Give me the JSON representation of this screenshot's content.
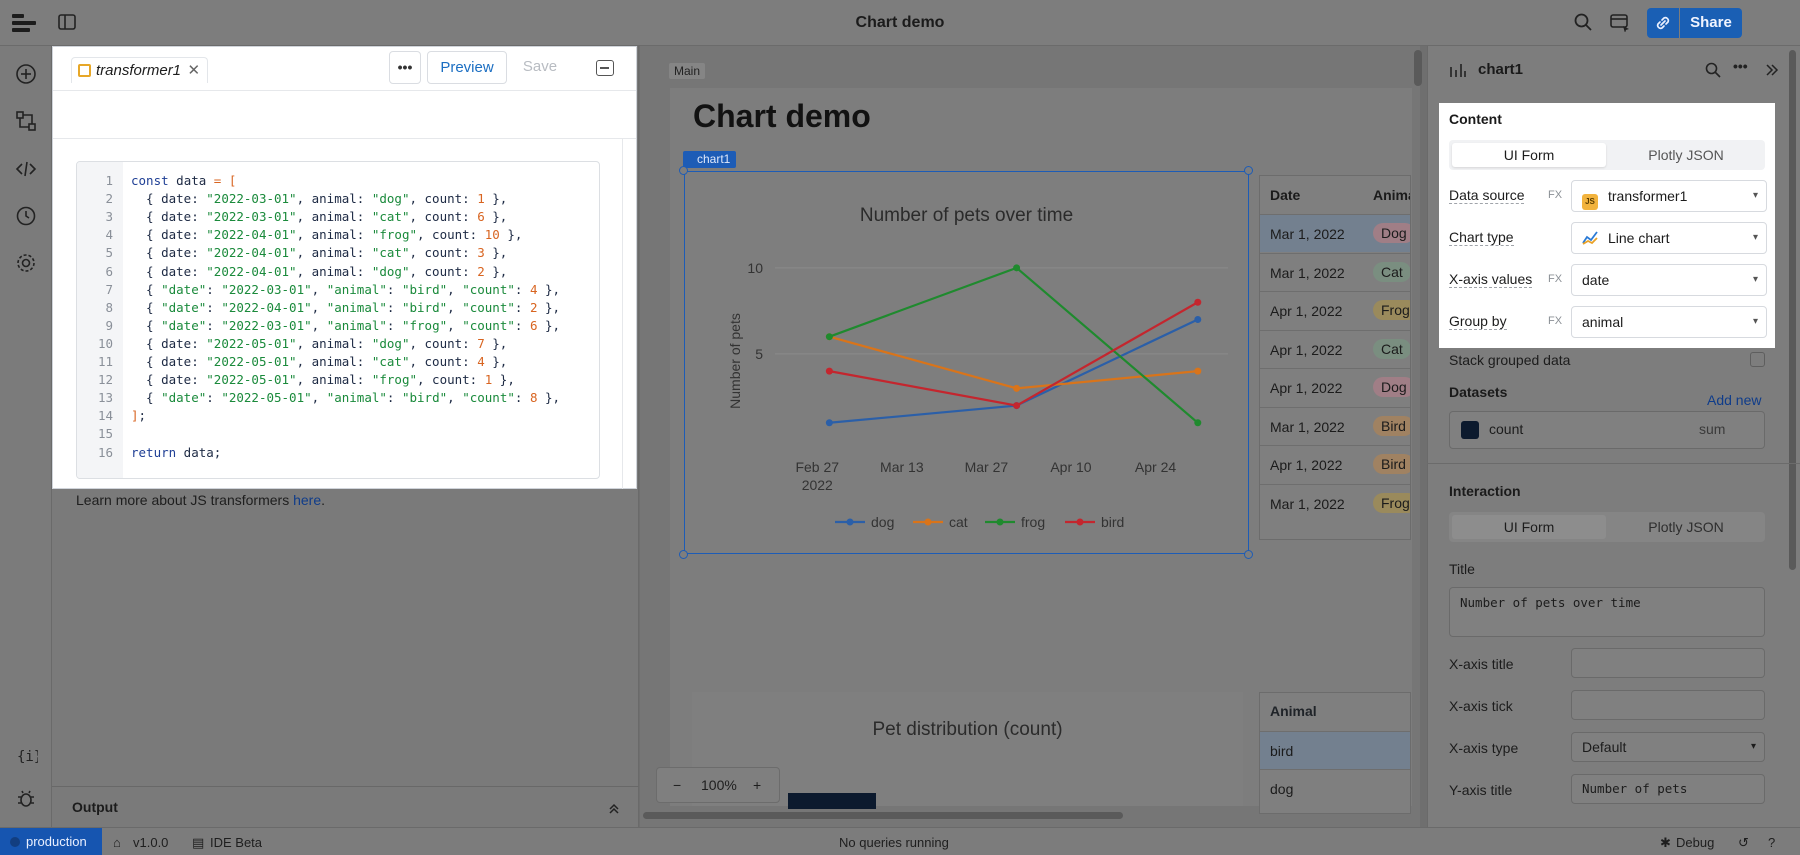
{
  "app": {
    "title": "Chart demo",
    "share_label": "Share"
  },
  "status_bar": {
    "environment": "production",
    "version": "v1.0.0",
    "ide": "IDE Beta",
    "queries": "No queries running",
    "debug": "Debug"
  },
  "transformer": {
    "tab_label": "transformer1",
    "preview_label": "Preview",
    "save_label": "Save",
    "more_label": "•••",
    "learn_prefix": "Learn more about JS transformers ",
    "learn_link": "here",
    "learn_suffix": ".",
    "output_label": "Output",
    "code_lines": [
      "const data = [",
      "  { date: \"2022-03-01\", animal: \"dog\", count: 1 },",
      "  { date: \"2022-03-01\", animal: \"cat\", count: 6 },",
      "  { date: \"2022-04-01\", animal: \"frog\", count: 10 },",
      "  { date: \"2022-04-01\", animal: \"cat\", count: 3 },",
      "  { date: \"2022-04-01\", animal: \"dog\", count: 2 },",
      "  { \"date\": \"2022-03-01\", \"animal\": \"bird\", \"count\": 4 },",
      "  { \"date\": \"2022-04-01\", \"animal\": \"bird\", \"count\": 2 },",
      "  { \"date\": \"2022-03-01\", \"animal\": \"frog\", \"count\": 6 },",
      "  { date: \"2022-05-01\", animal: \"dog\", count: 7 },",
      "  { date: \"2022-05-01\", animal: \"cat\", count: 4 },",
      "  { date: \"2022-05-01\", animal: \"frog\", count: 1 },",
      "  { \"date\": \"2022-05-01\", \"animal\": \"bird\", \"count\": 8 },",
      "];",
      "",
      "return data;"
    ]
  },
  "canvas": {
    "section_label": "Main",
    "heading": "Chart demo",
    "chart_component_label": "chart1",
    "zoom_level": "100%",
    "zoom_minus": "−",
    "zoom_plus": "+",
    "chart2_title": "Pet distribution (count)",
    "table1": {
      "headers": [
        "Date",
        "Animal"
      ],
      "rows": [
        {
          "date": "Mar 1, 2022",
          "animal": "Dog"
        },
        {
          "date": "Mar 1, 2022",
          "animal": "Cat"
        },
        {
          "date": "Apr 1, 2022",
          "animal": "Frog"
        },
        {
          "date": "Apr 1, 2022",
          "animal": "Cat"
        },
        {
          "date": "Apr 1, 2022",
          "animal": "Dog"
        },
        {
          "date": "Mar 1, 2022",
          "animal": "Bird"
        },
        {
          "date": "Apr 1, 2022",
          "animal": "Bird"
        },
        {
          "date": "Mar 1, 2022",
          "animal": "Frog"
        }
      ]
    },
    "table2": {
      "header": "Animal",
      "rows": [
        "bird",
        "dog"
      ]
    }
  },
  "chart_data": {
    "type": "line",
    "title": "Number of pets over time",
    "xlabel": "",
    "ylabel": "Number of pets",
    "x": [
      "2022-03-01",
      "2022-04-01",
      "2022-05-01"
    ],
    "x_tick_labels": [
      "Feb 27",
      "Mar 13",
      "Mar 27",
      "Apr 10",
      "Apr 24"
    ],
    "x_tick_year": "2022",
    "y_ticks": [
      5,
      10
    ],
    "series": [
      {
        "name": "dog",
        "values": [
          1,
          2,
          7
        ],
        "color": "#2b5fa8"
      },
      {
        "name": "cat",
        "values": [
          6,
          3,
          4
        ],
        "color": "#d9741a"
      },
      {
        "name": "frog",
        "values": [
          6,
          10,
          1
        ],
        "color": "#1f8a2e"
      },
      {
        "name": "bird",
        "values": [
          4,
          2,
          8
        ],
        "color": "#c4262e"
      }
    ],
    "legend": "bottom",
    "grid": true
  },
  "inspector": {
    "component": "chart1",
    "content_title": "Content",
    "mode_ui": "UI Form",
    "mode_json": "Plotly JSON",
    "rows": [
      {
        "label": "Data source",
        "fx": "FX",
        "value": "transformer1",
        "icon": "js-icon"
      },
      {
        "label": "Chart type",
        "fx": "",
        "value": "Line chart",
        "icon": "line-chart-icon"
      },
      {
        "label": "X-axis values",
        "fx": "FX",
        "value": "date",
        "icon": ""
      },
      {
        "label": "Group by",
        "fx": "FX",
        "value": "animal",
        "icon": ""
      }
    ],
    "stack_label": "Stack grouped data",
    "datasets_label": "Datasets",
    "add_new_label": "Add new",
    "dataset": {
      "name": "count",
      "agg": "sum",
      "color": "#0c1a2e"
    },
    "interaction_title": "Interaction",
    "title_label": "Title",
    "title_value": "Number of pets over time",
    "xaxis_title_label": "X-axis title",
    "xaxis_tick_label": "X-axis tick",
    "xaxis_type_label": "X-axis type",
    "xaxis_type_value": "Default",
    "yaxis_title_label": "Y-axis title",
    "yaxis_title_value": "Number of pets"
  }
}
